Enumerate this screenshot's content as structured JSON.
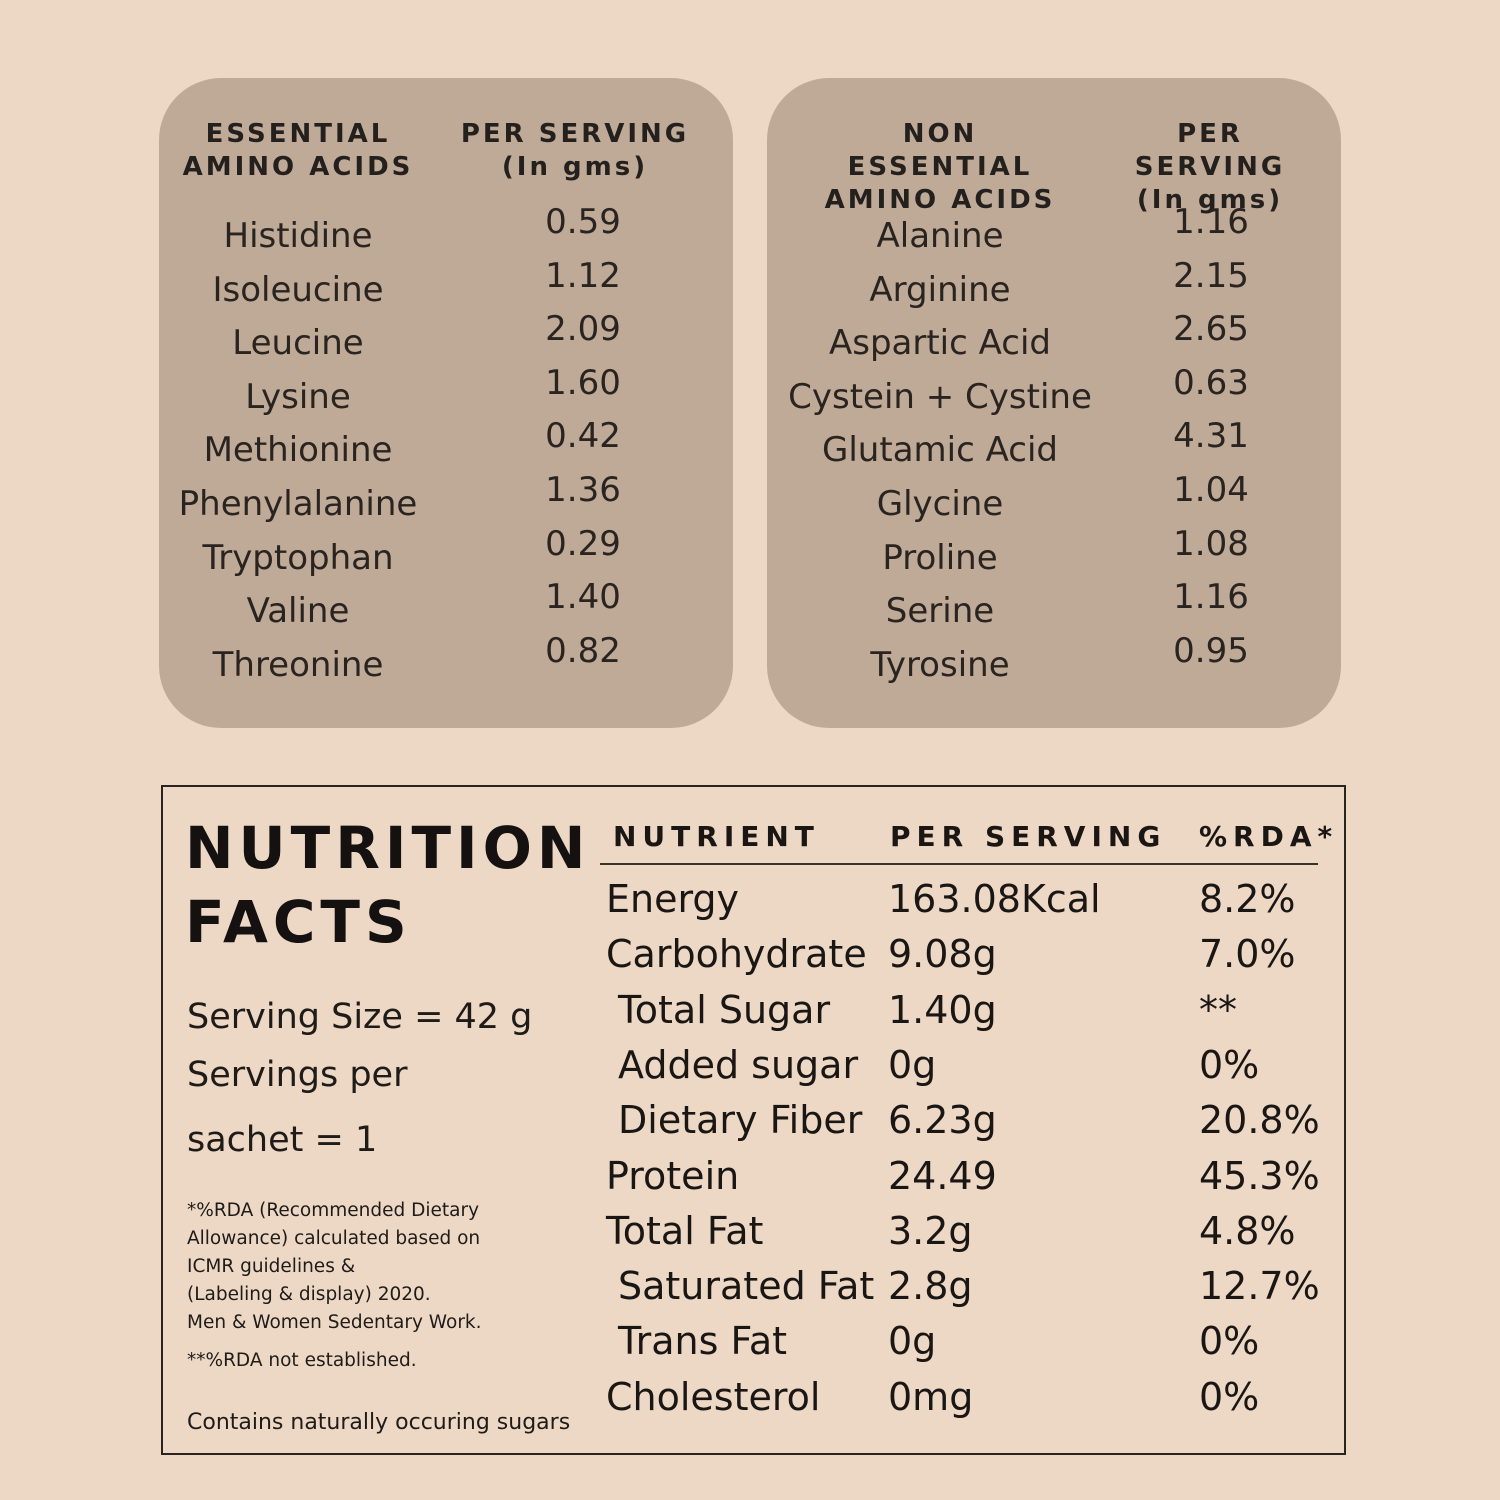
{
  "essential": {
    "header_name": "ESSENTIAL\nAMINO ACIDS",
    "header_value": "PER SERVING\n(In gms)",
    "rows": [
      {
        "name": "Histidine",
        "value": "0.59"
      },
      {
        "name": "Isoleucine",
        "value": "1.12"
      },
      {
        "name": "Leucine",
        "value": "2.09"
      },
      {
        "name": "Lysine",
        "value": "1.60"
      },
      {
        "name": "Methionine",
        "value": "0.42"
      },
      {
        "name": "Phenylalanine",
        "value": "1.36"
      },
      {
        "name": "Tryptophan",
        "value": "0.29"
      },
      {
        "name": "Valine",
        "value": "1.40"
      },
      {
        "name": "Threonine",
        "value": "0.82"
      }
    ]
  },
  "nonessential": {
    "header_name": "NON ESSENTIAL\nAMINO ACIDS",
    "header_value": "PER SERVING\n(In gms)",
    "rows": [
      {
        "name": "Alanine",
        "value": "1.16"
      },
      {
        "name": "Arginine",
        "value": "2.15"
      },
      {
        "name": "Aspartic Acid",
        "value": "2.65"
      },
      {
        "name": "Cystein + Cystine",
        "value": "0.63"
      },
      {
        "name": "Glutamic Acid",
        "value": "4.31"
      },
      {
        "name": "Glycine",
        "value": "1.04"
      },
      {
        "name": "Proline",
        "value": "1.08"
      },
      {
        "name": "Serine",
        "value": "1.16"
      },
      {
        "name": "Tyrosine",
        "value": "0.95"
      }
    ]
  },
  "nutrition": {
    "title": "NUTRITION\nFACTS",
    "serving_size": "Serving Size =  42 g",
    "servings_per": "Servings per",
    "servings_per_2": "sachet = 1",
    "rda_note": "*%RDA (Recommended Dietary\nAllowance) calculated based on\nICMR guidelines &\n(Labeling & display) 2020.\nMen & Women Sedentary Work.",
    "rda_note2": "**%RDA not established.",
    "sugars_note": "Contains naturally occuring sugars",
    "headers": {
      "nutrient": "NUTRIENT",
      "serving": "PER SERVING",
      "rda": "%RDA*"
    },
    "rows": [
      {
        "name": "Energy",
        "value": "163.08Kcal",
        "rda": "8.2%"
      },
      {
        "name": "Carbohydrate",
        "value": "9.08g",
        "rda": "7.0%"
      },
      {
        "name": "Total Sugar",
        "value": "1.40g",
        "rda": "**"
      },
      {
        "name": "Added sugar",
        "value": "0g",
        "rda": "0%"
      },
      {
        "name": "Dietary Fiber",
        "value": "6.23g",
        "rda": "20.8%"
      },
      {
        "name": "Protein",
        "value": "24.49",
        "rda": "45.3%"
      },
      {
        "name": "Total Fat",
        "value": "3.2g",
        "rda": "4.8%"
      },
      {
        "name": "Saturated Fat",
        "value": "2.8g",
        "rda": "12.7%"
      },
      {
        "name": "Trans Fat",
        "value": "0g",
        "rda": "0%"
      },
      {
        "name": "Cholesterol",
        "value": "0mg",
        "rda": "0%"
      }
    ]
  }
}
